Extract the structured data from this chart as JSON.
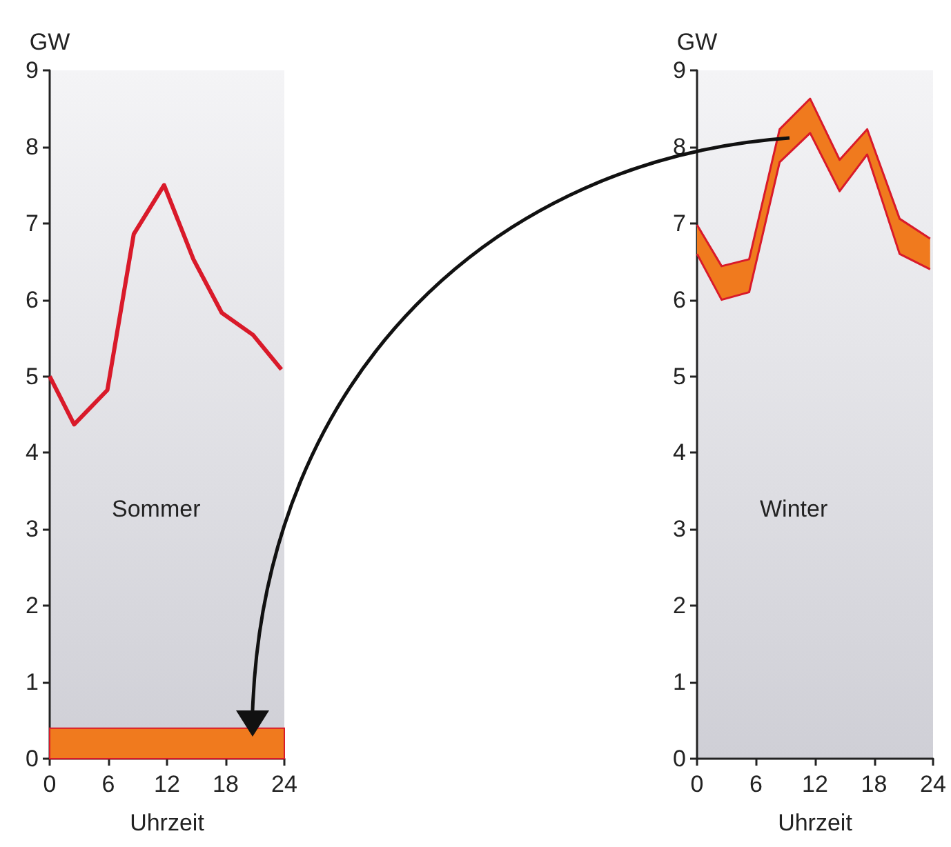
{
  "chart_data": [
    {
      "type": "line",
      "ylabel": "GW",
      "xlabel": "Uhrzeit",
      "annotations": [
        "Sommer"
      ],
      "xlim": [
        0,
        24
      ],
      "xticks": [
        0,
        6,
        12,
        18,
        24
      ],
      "ylim": [
        0,
        9
      ],
      "yticks": [
        0,
        1,
        2,
        3,
        4,
        5,
        6,
        7,
        8,
        9
      ],
      "grid": false,
      "marker": "none",
      "line_style": "solid",
      "series": [
        {
          "color": "#d91a2a",
          "x": [
            0,
            2.5,
            5.9,
            8.6,
            11.7,
            14.7,
            17.6,
            20.8,
            23.7
          ],
          "values": [
            5.0,
            4.37,
            4.82,
            6.86,
            7.5,
            6.53,
            5.83,
            5.54,
            5.09
          ]
        }
      ],
      "bands": [
        {
          "axis": "y",
          "from": 0,
          "to": 0.4,
          "color": "#f07a1e"
        }
      ]
    },
    {
      "type": "area",
      "ylabel": "GW",
      "xlabel": "Uhrzeit",
      "annotations": [
        "Winter"
      ],
      "xlim": [
        0,
        24
      ],
      "xticks": [
        0,
        6,
        12,
        18,
        24
      ],
      "ylim": [
        0,
        9
      ],
      "yticks": [
        0,
        1,
        2,
        3,
        4,
        5,
        6,
        7,
        8,
        9
      ],
      "grid": false,
      "series": [
        {
          "type": "line",
          "color": "#d91a2a",
          "x": [
            0,
            2.5,
            5.3,
            8.4,
            11.5,
            14.5,
            17.3,
            20.6,
            23.7
          ],
          "values": [
            6.6,
            6.0,
            6.1,
            7.8,
            8.18,
            7.42,
            7.9,
            6.6,
            6.4
          ]
        },
        {
          "type": "area",
          "color": "#f07a1e",
          "x": [
            0,
            2.5,
            5.3,
            8.4,
            11.5,
            14.5,
            17.3,
            20.6,
            23.7
          ],
          "values": [
            6.98,
            6.44,
            6.53,
            8.23,
            8.63,
            7.83,
            8.23,
            7.06,
            6.8
          ]
        }
      ]
    }
  ]
}
